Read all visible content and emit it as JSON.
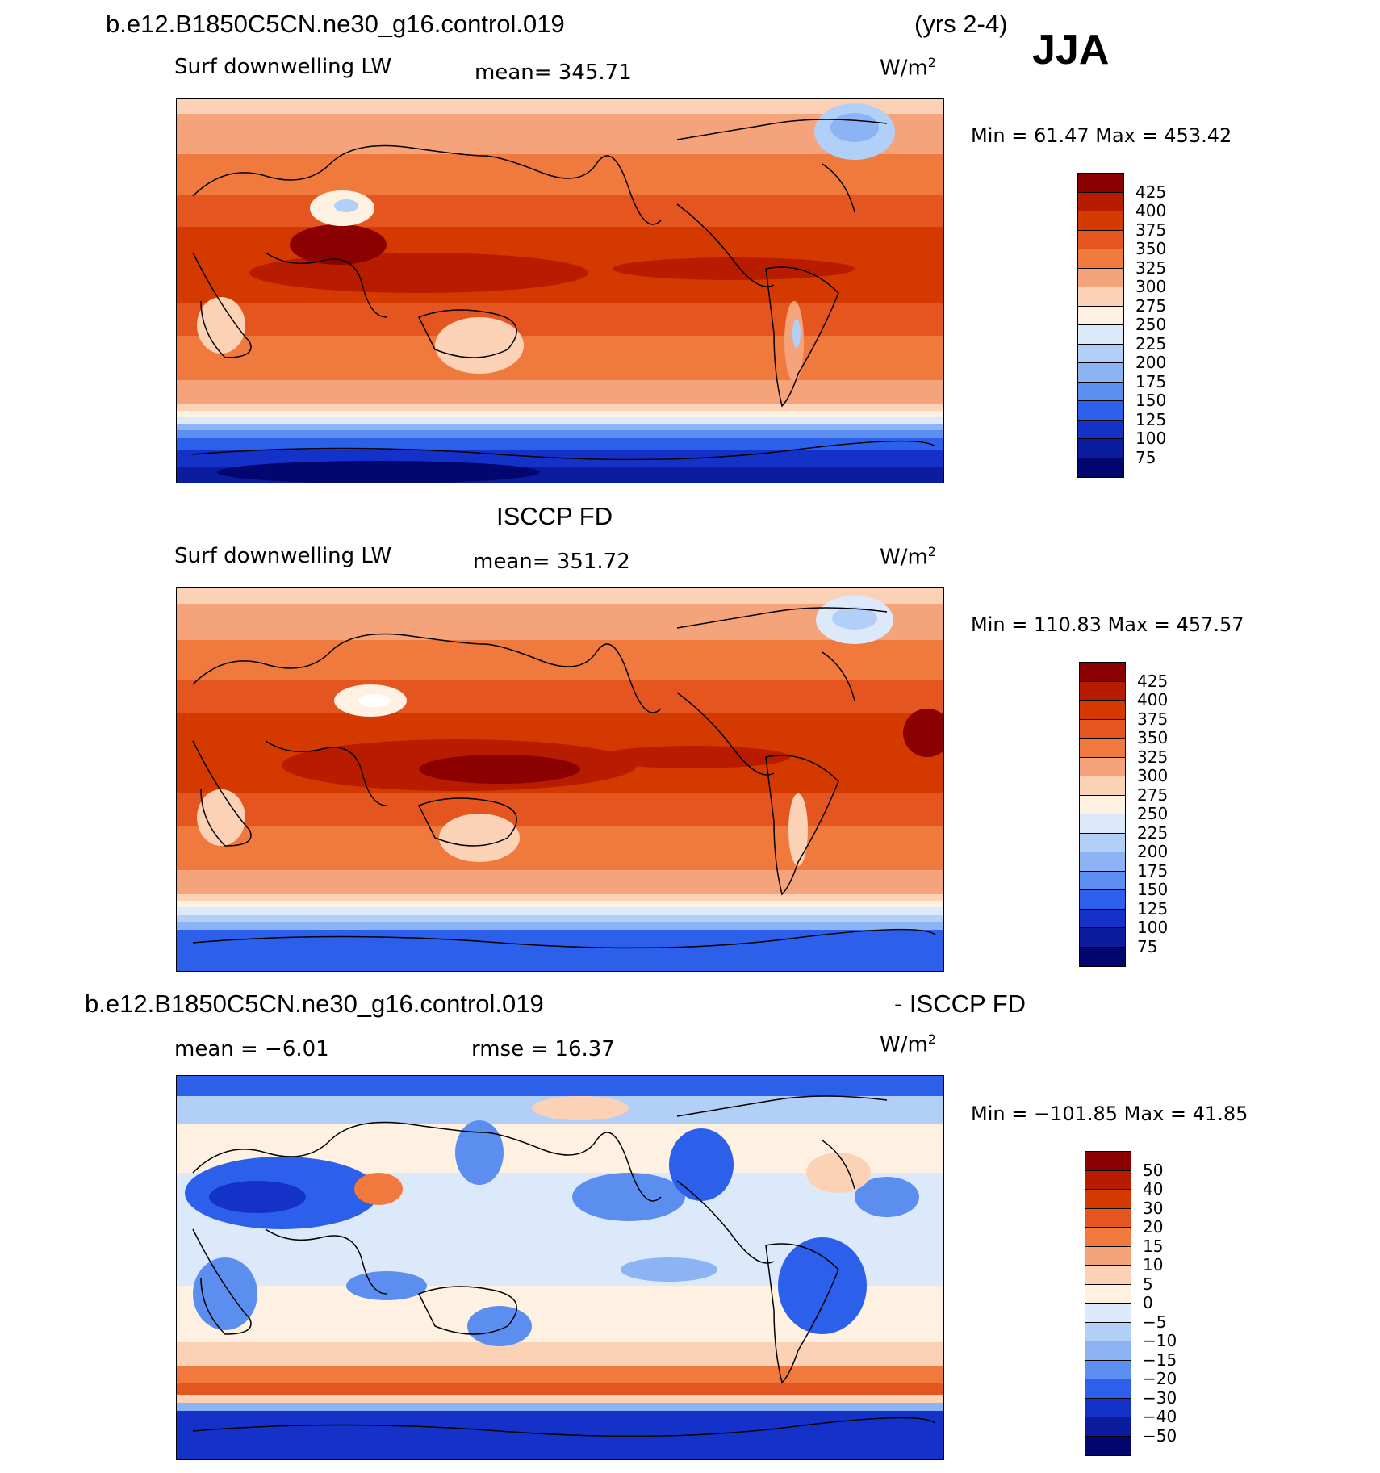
{
  "header": {
    "run_name": "b.e12.B1850C5CN.ne30_g16.control.019",
    "years": "(yrs 2-4)",
    "season": "JJA"
  },
  "panels": [
    {
      "id": "model",
      "title": "",
      "left_text": "Surf downwelling LW",
      "center_text": "mean= 345.71",
      "units_base": "W/m",
      "units_exp": "2",
      "minmax": "Min =  61.47 Max = 453.42",
      "colorbar": {
        "labels": [
          "425",
          "400",
          "375",
          "350",
          "325",
          "300",
          "275",
          "250",
          "225",
          "200",
          "175",
          "150",
          "125",
          "100",
          "75"
        ],
        "colors": [
          "#8b0000",
          "#b71c00",
          "#d43a00",
          "#e45520",
          "#f07a3e",
          "#f5a37a",
          "#fbd2b5",
          "#fff1e2",
          "#dce9fb",
          "#b2cff7",
          "#8cb4f5",
          "#5c8ef0",
          "#2c5fea",
          "#1432c7",
          "#0b1c9e",
          "#02066f"
        ]
      }
    },
    {
      "id": "obs",
      "title": "ISCCP FD",
      "left_text": "Surf downwelling LW",
      "center_text": "mean= 351.72",
      "units_base": "W/m",
      "units_exp": "2",
      "minmax": "Min = 110.83 Max = 457.57",
      "colorbar": {
        "labels": [
          "425",
          "400",
          "375",
          "350",
          "325",
          "300",
          "275",
          "250",
          "225",
          "200",
          "175",
          "150",
          "125",
          "100",
          "75"
        ],
        "colors": [
          "#8b0000",
          "#b71c00",
          "#d43a00",
          "#e45520",
          "#f07a3e",
          "#f5a37a",
          "#fbd2b5",
          "#fff1e2",
          "#dce9fb",
          "#b2cff7",
          "#8cb4f5",
          "#5c8ef0",
          "#2c5fea",
          "#1432c7",
          "#0b1c9e",
          "#02066f"
        ]
      }
    },
    {
      "id": "diff",
      "title_left": "b.e12.B1850C5CN.ne30_g16.control.019",
      "title_right": "- ISCCP FD",
      "left_text": "mean =   −6.01",
      "center_text": "rmse =   16.37",
      "units_base": "W/m",
      "units_exp": "2",
      "minmax": "Min = −101.85 Max =   41.85",
      "colorbar": {
        "labels": [
          "50",
          "40",
          "30",
          "20",
          "15",
          "10",
          "5",
          "0",
          "−5",
          "−10",
          "−15",
          "−20",
          "−30",
          "−40",
          "−50"
        ],
        "colors": [
          "#8b0000",
          "#b71c00",
          "#d43a00",
          "#e45520",
          "#f07a3e",
          "#f5a37a",
          "#fbd2b5",
          "#fff1e2",
          "#dce9fb",
          "#b2cff7",
          "#8cb4f5",
          "#5c8ef0",
          "#2c5fea",
          "#1432c7",
          "#0b1c9e",
          "#02066f"
        ]
      }
    }
  ]
}
